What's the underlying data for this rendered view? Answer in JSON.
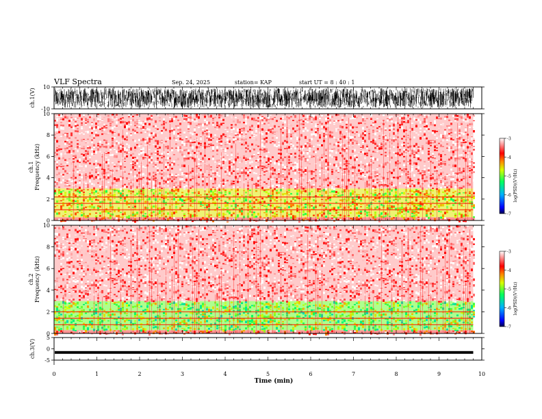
{
  "header": {
    "title": "VLF Spectra",
    "date": "Sep. 24, 2025",
    "station": "station= KAP",
    "start": "start  UT =   8 : 40 : 1"
  },
  "chart_data": [
    {
      "type": "line",
      "name": "ch1-waveform",
      "ylabel": "ch.1(V)",
      "ylim": [
        -10,
        10
      ],
      "yticks": [
        "10",
        "-10"
      ],
      "xlim": [
        0,
        10
      ],
      "data_end_min": 9.8,
      "description_values": "dense noise waveform spanning roughly -8 to +9 V"
    },
    {
      "type": "heatmap",
      "name": "ch1-spectrogram",
      "ylabel": "ch.1\nFrequency  (kHz)",
      "ylim": [
        0,
        10
      ],
      "yticks": [
        "0",
        "2",
        "4",
        "6",
        "8",
        "10"
      ],
      "xlim": [
        0,
        10
      ],
      "data_end_min": 9.8,
      "bands_khz": [
        {
          "from": 0.0,
          "to": 0.3,
          "level": -3.6
        },
        {
          "from": 0.3,
          "to": 3.0,
          "level": -4.6
        },
        {
          "from": 3.0,
          "to": 10.0,
          "level": -3.3
        }
      ],
      "lines_khz": [
        2.2,
        1.6,
        1.0
      ],
      "colorbar": {
        "label": "log(PSD)(V²/Hz)",
        "range": [
          -7,
          -3
        ],
        "ticks": [
          "-3",
          "-4",
          "-5",
          "-6",
          "-7"
        ]
      }
    },
    {
      "type": "heatmap",
      "name": "ch2-spectrogram",
      "ylabel": "ch.2\nFrequency  (kHz)",
      "ylim": [
        0,
        10
      ],
      "yticks": [
        "0",
        "2",
        "4",
        "6",
        "8",
        "10"
      ],
      "xlim": [
        0,
        10
      ],
      "data_end_min": 9.8,
      "bands_khz": [
        {
          "from": 0.0,
          "to": 0.3,
          "level": -3.6
        },
        {
          "from": 0.3,
          "to": 3.0,
          "level": -5.0
        },
        {
          "from": 3.0,
          "to": 10.0,
          "level": -3.3
        }
      ],
      "lines_khz": [
        2.0,
        1.4,
        0.8
      ],
      "colorbar": {
        "label": "log(PSD)(V²/Hz)",
        "range": [
          -7,
          -3
        ],
        "ticks": [
          "-3",
          "-4",
          "-5",
          "-6",
          "-7"
        ]
      }
    },
    {
      "type": "line",
      "name": "ch3-waveform",
      "ylabel": "ch.3(V)",
      "ylim": [
        -5,
        5
      ],
      "yticks": [
        "5",
        "0",
        "-5"
      ],
      "xlim": [
        0,
        10
      ],
      "data_end_min": 9.8,
      "level_v": -1.6,
      "spread_v": 0.6
    }
  ],
  "xaxis": {
    "label": "Time  (min)",
    "ticks": [
      "0",
      "1",
      "2",
      "3",
      "4",
      "5",
      "6",
      "7",
      "8",
      "9",
      "10"
    ]
  }
}
